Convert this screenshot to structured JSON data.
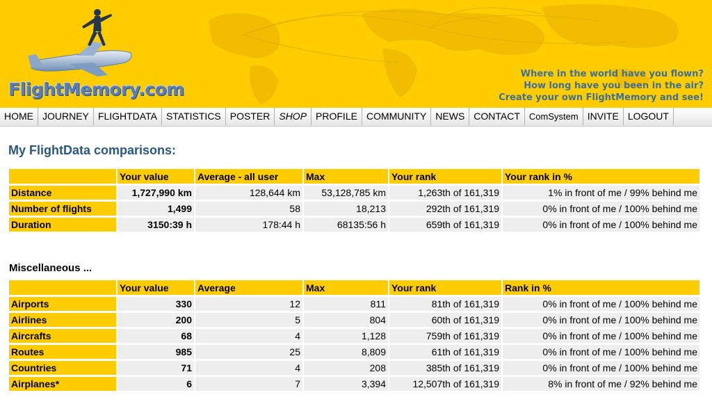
{
  "header": {
    "logo": "FlightMemory.com",
    "tagline": [
      "Where in the world have you flown?",
      "How long have you been in the air?",
      "Create your own FlightMemory and see!"
    ]
  },
  "nav": {
    "items": [
      "HOME",
      "JOURNEY",
      "FLIGHTDATA",
      "STATISTICS",
      "POSTER",
      "SHOP",
      "PROFILE",
      "COMMUNITY",
      "NEWS",
      "CONTACT",
      "ComSystem",
      "INVITE",
      "LOGOUT"
    ]
  },
  "title": "My FlightData comparisons:",
  "comparison": {
    "headers": [
      "",
      "Your value",
      "Average - all user",
      "Max",
      "Your rank",
      "Your rank in %"
    ],
    "rows": [
      [
        "Distance",
        "1,727,990 km",
        "128,644 km",
        "53,128,785 km",
        "1,263th of 161,319",
        "1% in front of me / 99% behind me"
      ],
      [
        "Number of flights",
        "1,499",
        "58",
        "18,213",
        "292th of 161,319",
        "0% in front of me / 100% behind me"
      ],
      [
        "Duration",
        "3150:39 h",
        "178:44 h",
        "68135:56 h",
        "659th of 161,319",
        "0% in front of me / 100% behind me"
      ]
    ]
  },
  "misc_title": "Miscellaneous ...",
  "misc": {
    "headers": [
      "",
      "Your value",
      "Average",
      "Max",
      "Your rank",
      "Rank in %"
    ],
    "rows": [
      [
        "Airports",
        "330",
        "12",
        "811",
        "81th of 161,319",
        "0% in front of me / 100% behind me"
      ],
      [
        "Airlines",
        "200",
        "5",
        "804",
        "60th of 161,319",
        "0% in front of me / 100% behind me"
      ],
      [
        "Aircrafts",
        "68",
        "4",
        "1,128",
        "759th of 161,319",
        "0% in front of me / 100% behind me"
      ],
      [
        "Routes",
        "985",
        "25",
        "8,809",
        "61th of 161,319",
        "0% in front of me / 100% behind me"
      ],
      [
        "Countries",
        "71",
        "4",
        "208",
        "385th of 161,319",
        "0% in front of me / 100% behind me"
      ],
      [
        "Airplanes*",
        "6",
        "7",
        "3,394",
        "12,507th of 161,319",
        "8% in front of me / 92% behind me"
      ]
    ]
  }
}
